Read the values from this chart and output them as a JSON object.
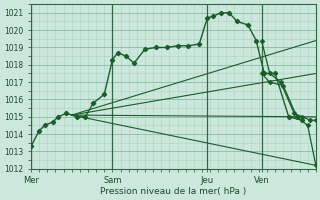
{
  "xlabel": "Pression niveau de la mer( hPa )",
  "bg_color": "#cce8dc",
  "grid_major_color": "#88bbaa",
  "grid_minor_color": "#aad4c4",
  "line_color": "#1a5c2a",
  "ylim": [
    1012,
    1021.5
  ],
  "yticks": [
    1012,
    1013,
    1014,
    1015,
    1016,
    1017,
    1018,
    1019,
    1020,
    1021
  ],
  "day_labels": [
    "Mer",
    "Sam",
    "Jeu",
    "Ven"
  ],
  "day_positions": [
    0,
    3.0,
    6.5,
    8.5
  ],
  "xlim": [
    0,
    10.5
  ],
  "main_x": [
    0,
    0.3,
    0.5,
    0.8,
    1.0,
    1.3,
    1.7,
    2.0,
    2.3,
    2.7,
    3.0,
    3.2,
    3.5,
    3.8,
    4.2,
    4.6,
    5.0,
    5.4,
    5.8,
    6.2,
    6.5,
    6.7,
    7.0,
    7.3,
    7.6,
    8.0,
    8.3,
    8.6,
    9.0,
    9.5,
    10.0
  ],
  "main_y": [
    1013.3,
    1014.2,
    1014.5,
    1014.7,
    1015.0,
    1015.2,
    1015.0,
    1015.0,
    1015.8,
    1016.3,
    1018.3,
    1018.7,
    1018.5,
    1018.1,
    1018.9,
    1019.0,
    1019.0,
    1019.1,
    1019.1,
    1019.2,
    1020.7,
    1020.8,
    1021.0,
    1021.0,
    1020.5,
    1020.3,
    1019.4,
    1017.5,
    1017.5,
    1015.0,
    1014.8
  ],
  "fan_lines": [
    {
      "x": [
        1.5,
        10.5
      ],
      "y": [
        1015.1,
        1019.4
      ]
    },
    {
      "x": [
        1.5,
        10.5
      ],
      "y": [
        1015.1,
        1017.5
      ]
    },
    {
      "x": [
        1.5,
        10.5
      ],
      "y": [
        1015.1,
        1015.0
      ]
    },
    {
      "x": [
        1.5,
        10.5
      ],
      "y": [
        1015.1,
        1012.2
      ]
    }
  ],
  "extra_lines": [
    {
      "x": [
        8.5,
        8.8,
        9.2,
        9.7,
        10.0,
        10.3,
        10.5
      ],
      "y": [
        1019.4,
        1017.5,
        1017.0,
        1015.2,
        1015.0,
        1014.8,
        1014.8
      ]
    },
    {
      "x": [
        8.5,
        8.8,
        9.3,
        9.8,
        10.2,
        10.5
      ],
      "y": [
        1017.5,
        1017.0,
        1016.8,
        1015.0,
        1014.5,
        1012.2
      ]
    }
  ]
}
